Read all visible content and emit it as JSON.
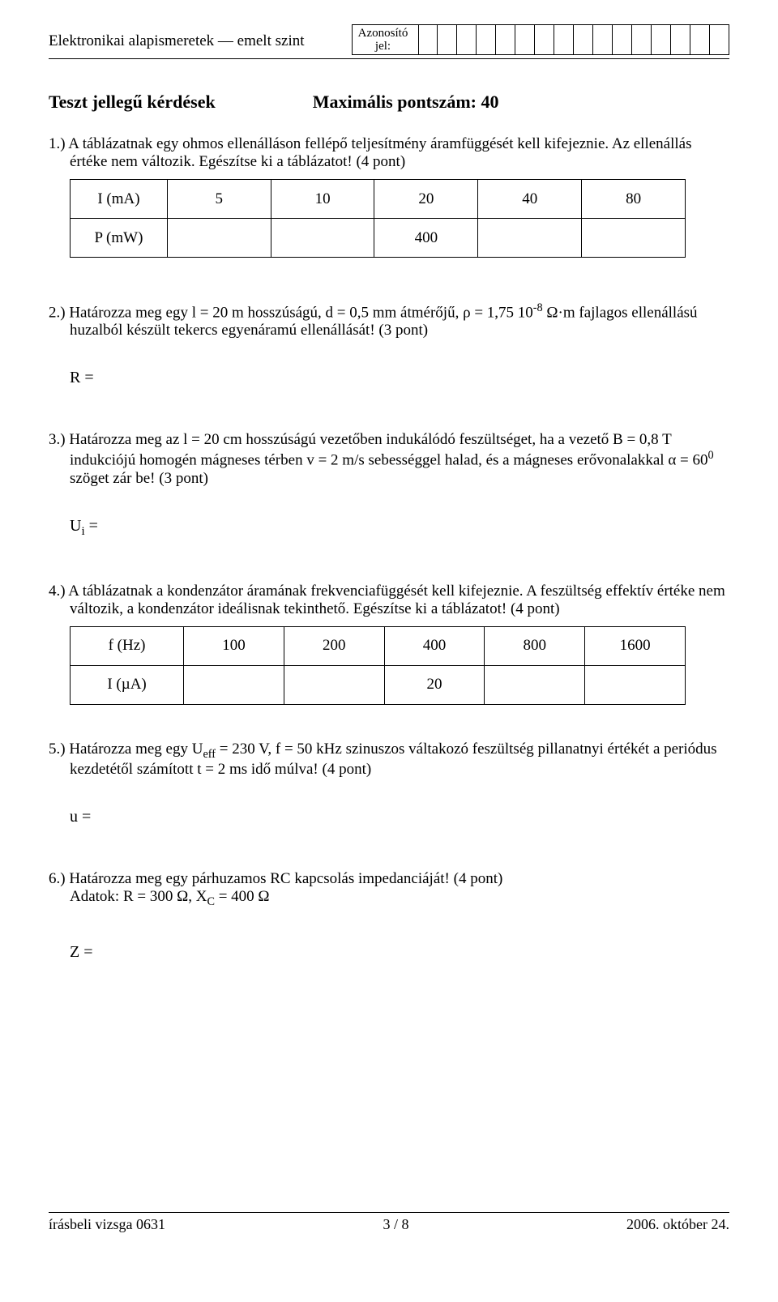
{
  "header": {
    "title": "Elektronikai alapismeretek — emelt szint",
    "id_label1": "Azonosító",
    "id_label2": "jel:",
    "id_cells": 16
  },
  "section": {
    "left": "Teszt jellegű kérdések",
    "right": "Maximális pontszám: 40"
  },
  "q1": {
    "text": "1.)  A táblázatnak egy ohmos ellenálláson fellépő teljesítmény áramfüggését kell kifejeznie. Az ellenállás értéke nem változik. Egészítse ki a táblázatot! (4 pont)",
    "row1_label": "I (mA)",
    "row1": [
      "5",
      "10",
      "20",
      "40",
      "80"
    ],
    "row2_label": "P (mW)",
    "row2": [
      "",
      "",
      "400",
      "",
      ""
    ]
  },
  "q2": {
    "text_html": "2.)  Határozza meg egy l = 20 m hosszúságú, d = 0,5 mm átmérőjű, ρ = 1,75 10<span class='sup'>-8</span> Ω·m fajlagos ellenállású huzalból készült tekercs egyenáramú ellenállását! (3 pont)",
    "formula": "R ="
  },
  "q3": {
    "text_html": "3.)  Határozza meg az l = 20 cm hosszúságú vezetőben indukálódó feszültséget, ha a vezető B = 0,8 T indukciójú homogén mágneses térben v = 2 m/s sebességgel halad, és a mágneses erővonalakkal α = 60<span class='sup'>0</span> szöget zár be! (3 pont)",
    "formula_html": "U<span class='sub'>i</span> ="
  },
  "q4": {
    "text": "4.)  A táblázatnak a kondenzátor áramának frekvenciafüggését kell kifejeznie. A feszültség effektív értéke nem változik, a kondenzátor ideálisnak tekinthető. Egészítse ki a táblázatot! (4 pont)",
    "row1_label": "f (Hz)",
    "row1": [
      "100",
      "200",
      "400",
      "800",
      "1600"
    ],
    "row2_label": "I (µA)",
    "row2": [
      "",
      "",
      "20",
      "",
      ""
    ]
  },
  "q5": {
    "text_html": "5.)  Határozza meg egy U<span class='sub'>eff</span> = 230 V, f = 50 kHz szinuszos váltakozó feszültség pillanatnyi értékét a periódus kezdetétől számított t = 2 ms idő múlva! (4 pont)",
    "formula": "u ="
  },
  "q6": {
    "text": "6.)  Határozza meg egy párhuzamos RC kapcsolás impedanciáját! (4 pont)",
    "data_html": "Adatok: R = 300 Ω, X<span class='sub'>C</span> = 400 Ω",
    "formula": "Z ="
  },
  "footer": {
    "left": "írásbeli vizsga 0631",
    "center": "3 / 8",
    "right": "2006. október 24."
  }
}
